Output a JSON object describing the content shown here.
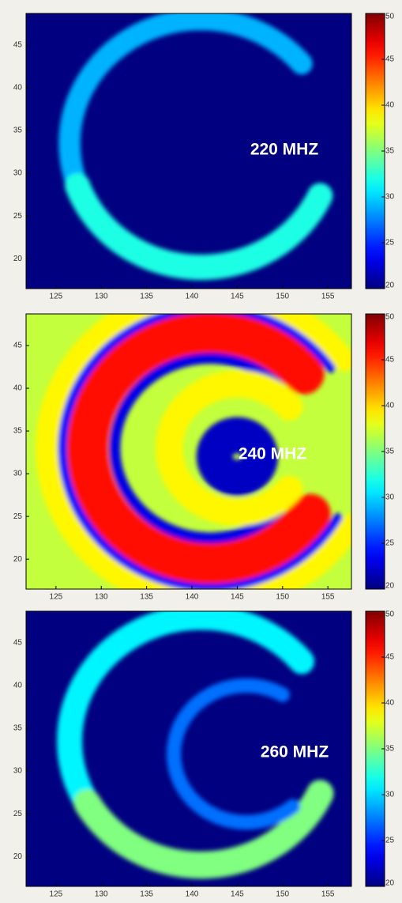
{
  "chart_data": [
    {
      "type": "heatmap",
      "label": "220 MHZ",
      "xlim": [
        121.7,
        157.6
      ],
      "ylim": [
        16.5,
        48.7
      ],
      "xticks": [
        125,
        130,
        135,
        140,
        145,
        150,
        155
      ],
      "yticks": [
        20,
        25,
        30,
        35,
        40,
        45
      ],
      "clim": [
        20,
        50
      ],
      "cticks": [
        20,
        25,
        30,
        35,
        40,
        45,
        50
      ],
      "colormap": "jet",
      "background": 20,
      "arcs": [
        {
          "cx": 141,
          "cy": 33.5,
          "r": 14.5,
          "width": 2.4,
          "start": 40,
          "end": 200,
          "value": 29
        },
        {
          "cx": 141,
          "cy": 33.5,
          "r": 14.5,
          "width": 2.8,
          "start": 200,
          "end": 335,
          "value": 32
        }
      ]
    },
    {
      "type": "heatmap",
      "label": "240 MHZ",
      "xlim": [
        121.7,
        157.6
      ],
      "ylim": [
        16.5,
        48.7
      ],
      "xticks": [
        125,
        130,
        135,
        140,
        145,
        150,
        155
      ],
      "yticks": [
        20,
        25,
        30,
        35,
        40,
        45
      ],
      "clim": [
        20,
        50
      ],
      "cticks": [
        20,
        25,
        30,
        35,
        40,
        45,
        50
      ],
      "colormap": "jet",
      "background": 37,
      "arcs": [
        {
          "cx": 142,
          "cy": 33,
          "r": 18,
          "width": 2.5,
          "start": 35,
          "end": 330,
          "value": 39
        },
        {
          "cx": 142,
          "cy": 33,
          "r": 16.3,
          "width": 1,
          "start": 35,
          "end": 330,
          "value": 24
        },
        {
          "cx": 142,
          "cy": 33,
          "r": 13.5,
          "width": 4.5,
          "start": 40,
          "end": 325,
          "value": 46
        },
        {
          "cx": 142,
          "cy": 33,
          "r": 10.5,
          "width": 1.2,
          "start": 40,
          "end": 325,
          "value": 23
        },
        {
          "cx": 145,
          "cy": 33,
          "r": 7.5,
          "width": 3,
          "start": 40,
          "end": 320,
          "value": 39
        },
        {
          "cx": 145,
          "cy": 32,
          "r": 2.5,
          "width": 4,
          "start": 0,
          "end": 360,
          "value": 22
        }
      ]
    },
    {
      "type": "heatmap",
      "label": "260 MHZ",
      "xlim": [
        121.7,
        157.6
      ],
      "ylim": [
        16.5,
        48.7
      ],
      "xticks": [
        125,
        130,
        135,
        140,
        145,
        150,
        155
      ],
      "yticks": [
        20,
        25,
        30,
        35,
        40,
        45
      ],
      "clim": [
        20,
        50
      ],
      "cticks": [
        20,
        25,
        30,
        35,
        40,
        45,
        50
      ],
      "colormap": "jet",
      "background": 20,
      "arcs": [
        {
          "cx": 141,
          "cy": 33.5,
          "r": 14.5,
          "width": 2.8,
          "start": 40,
          "end": 210,
          "value": 31
        },
        {
          "cx": 141,
          "cy": 33.5,
          "r": 14.5,
          "width": 3,
          "start": 210,
          "end": 335,
          "value": 35
        },
        {
          "cx": 146,
          "cy": 32,
          "r": 8,
          "width": 1.6,
          "start": 60,
          "end": 310,
          "value": 27
        }
      ]
    }
  ]
}
